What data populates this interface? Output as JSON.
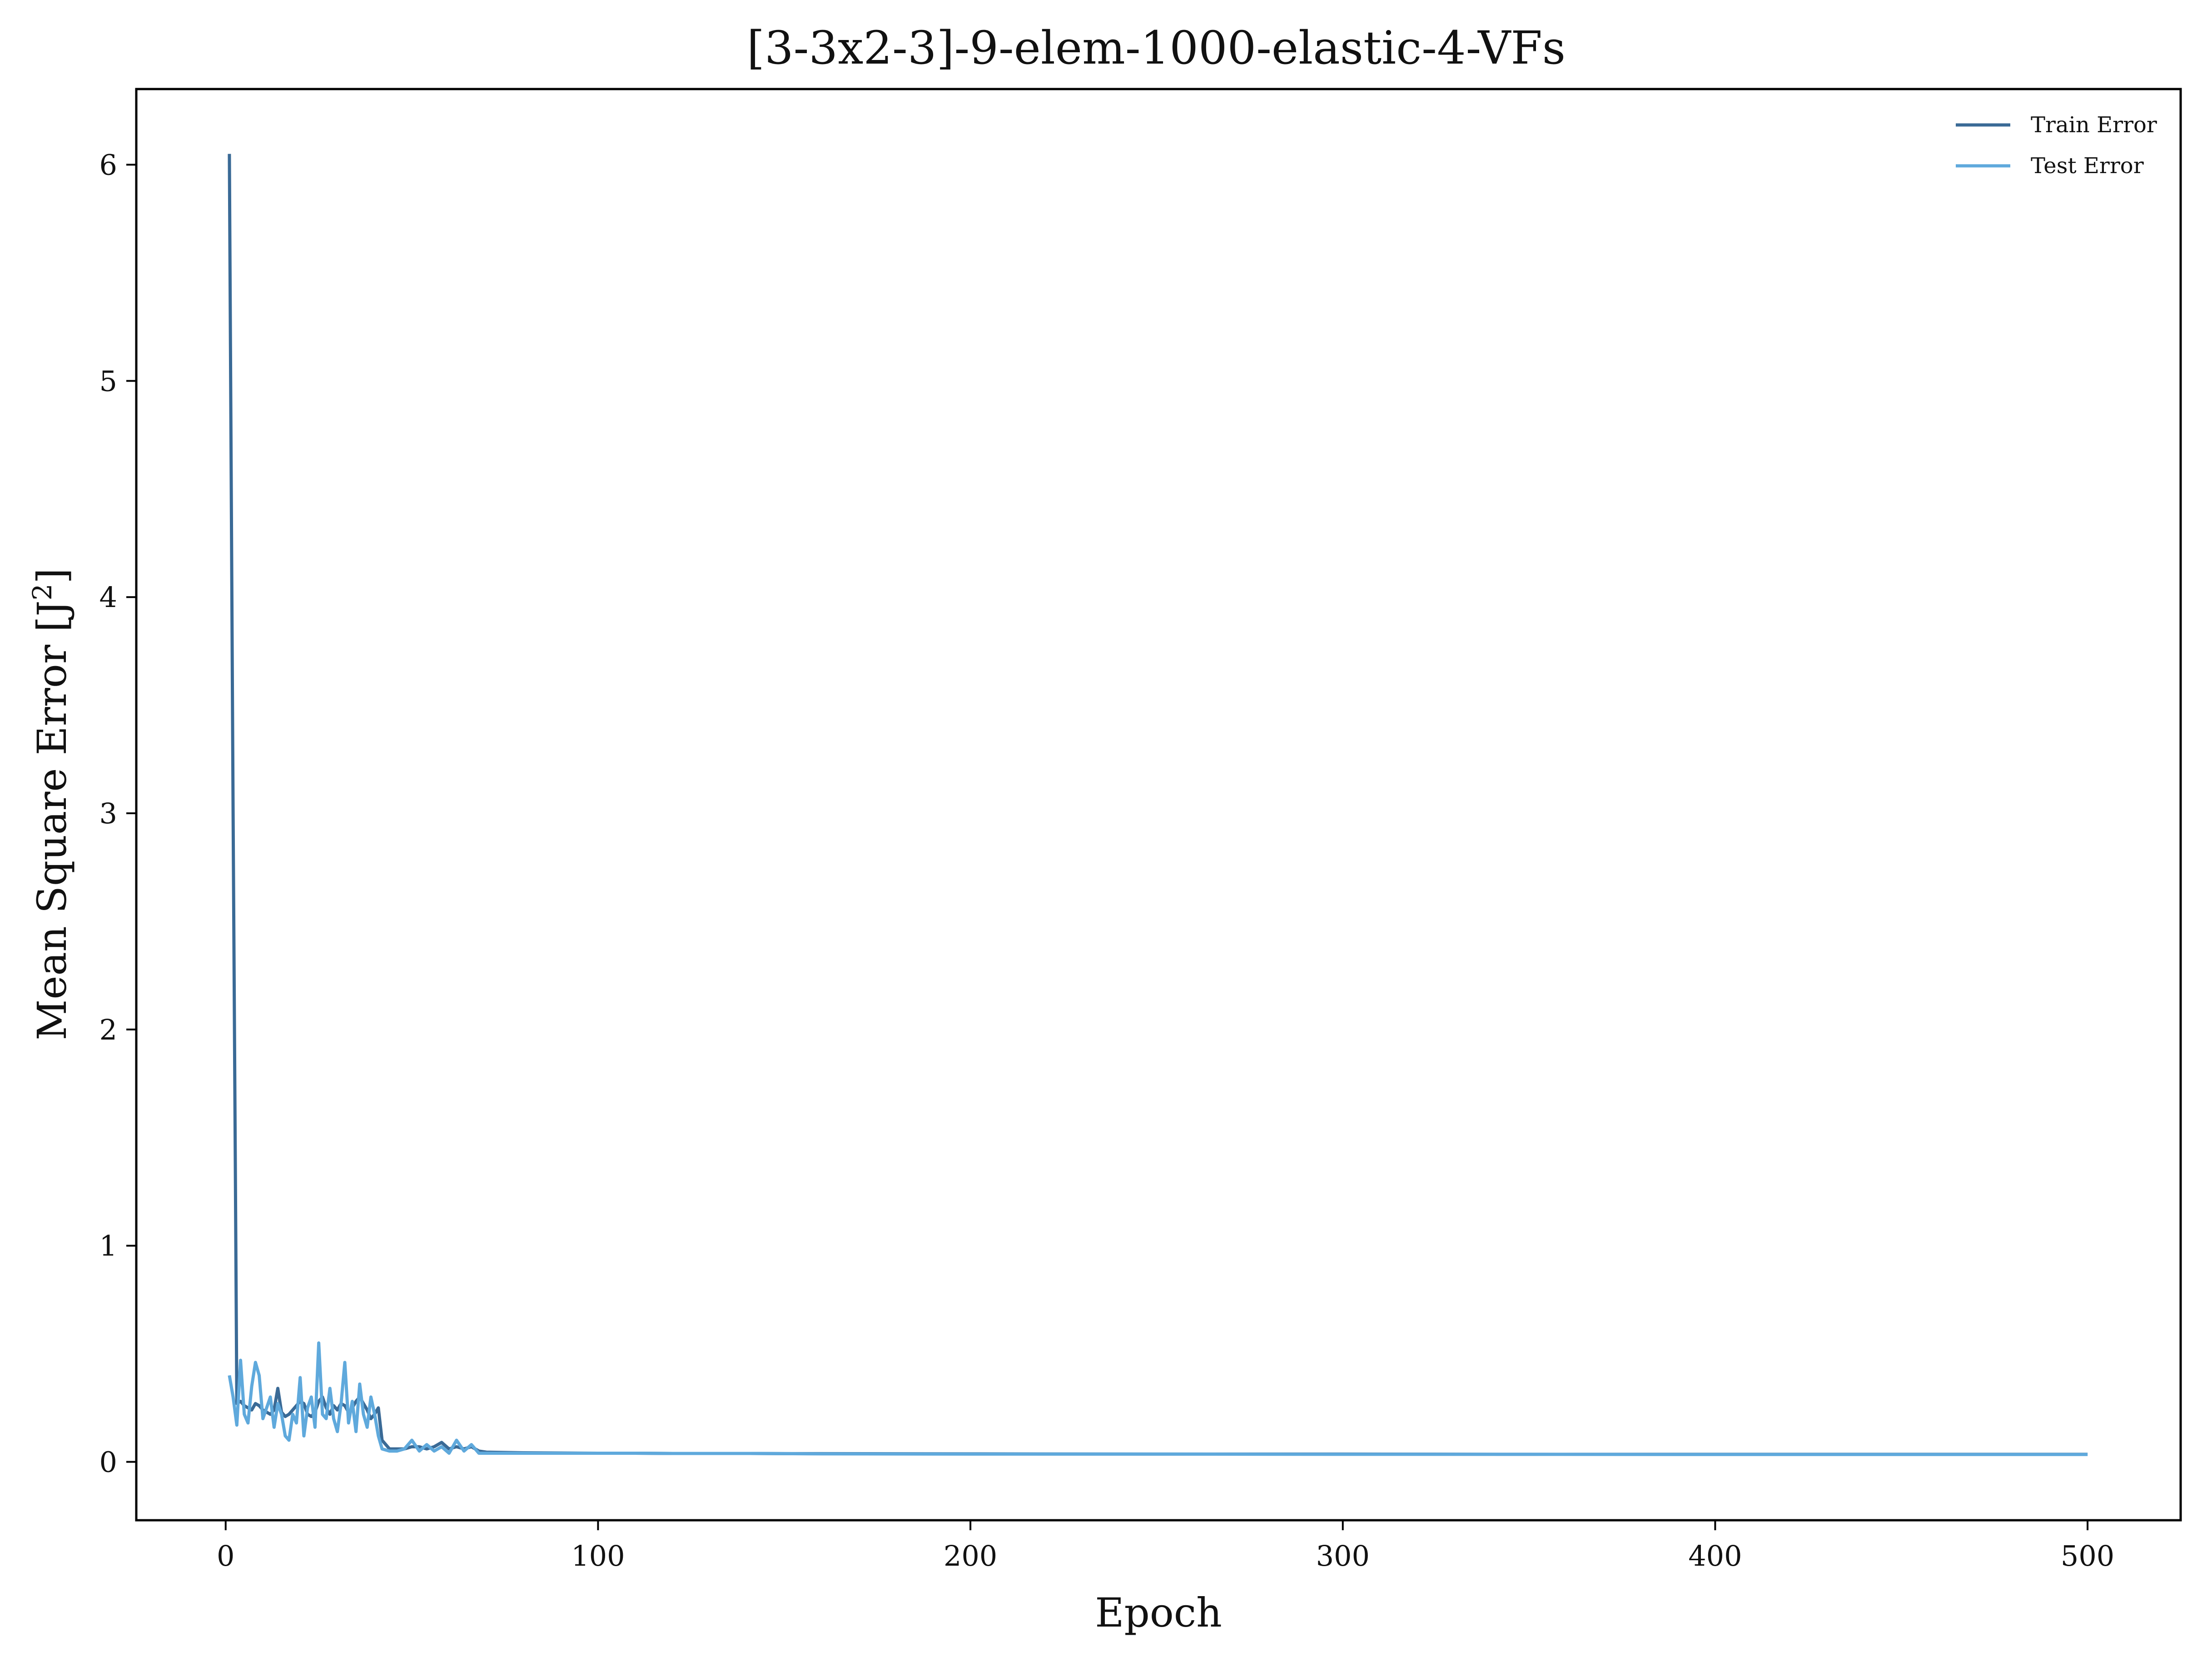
{
  "chart_data": {
    "type": "line",
    "title": "[3-3x2-3]-9-elem-1000-elastic-4-VFs",
    "xlabel": "Epoch",
    "ylabel": "Mean Square Error [J",
    "ylabel_superscript": "2",
    "ylabel_suffix": "]",
    "xlim": [
      -24,
      525
    ],
    "ylim": [
      -0.27,
      6.35
    ],
    "xticks": [
      0,
      100,
      200,
      300,
      400,
      500
    ],
    "yticks": [
      0,
      1,
      2,
      3,
      4,
      5,
      6
    ],
    "grid": false,
    "legend_position": "top-right",
    "series": [
      {
        "name": "Train Error",
        "color": "#3a6a96",
        "x": [
          1,
          2,
          3,
          4,
          5,
          6,
          7,
          8,
          9,
          10,
          11,
          12,
          13,
          14,
          15,
          16,
          17,
          18,
          19,
          20,
          21,
          22,
          23,
          24,
          25,
          26,
          27,
          28,
          29,
          30,
          31,
          32,
          33,
          34,
          35,
          36,
          37,
          38,
          39,
          40,
          41,
          42,
          44,
          46,
          48,
          50,
          52,
          54,
          56,
          58,
          60,
          62,
          64,
          66,
          68,
          70,
          80,
          90,
          100,
          110,
          120,
          130,
          140,
          150,
          160,
          200,
          250,
          300,
          350,
          400,
          450,
          500
        ],
        "y": [
          6.05,
          3.0,
          0.27,
          0.28,
          0.26,
          0.25,
          0.24,
          0.27,
          0.26,
          0.24,
          0.23,
          0.22,
          0.24,
          0.34,
          0.23,
          0.21,
          0.22,
          0.24,
          0.26,
          0.28,
          0.27,
          0.22,
          0.21,
          0.23,
          0.28,
          0.3,
          0.25,
          0.22,
          0.26,
          0.24,
          0.27,
          0.26,
          0.23,
          0.25,
          0.28,
          0.3,
          0.27,
          0.24,
          0.2,
          0.22,
          0.25,
          0.1,
          0.06,
          0.06,
          0.06,
          0.07,
          0.07,
          0.06,
          0.07,
          0.09,
          0.06,
          0.07,
          0.06,
          0.07,
          0.05,
          0.045,
          0.042,
          0.041,
          0.04,
          0.04,
          0.039,
          0.039,
          0.039,
          0.038,
          0.038,
          0.037,
          0.036,
          0.036,
          0.035,
          0.035,
          0.035,
          0.035
        ]
      },
      {
        "name": "Test Error",
        "color": "#5fa9dc",
        "x": [
          1,
          2,
          3,
          4,
          5,
          6,
          7,
          8,
          9,
          10,
          11,
          12,
          13,
          14,
          15,
          16,
          17,
          18,
          19,
          20,
          21,
          22,
          23,
          24,
          25,
          26,
          27,
          28,
          29,
          30,
          31,
          32,
          33,
          34,
          35,
          36,
          37,
          38,
          39,
          40,
          41,
          42,
          44,
          46,
          48,
          50,
          52,
          54,
          56,
          58,
          60,
          62,
          64,
          66,
          68,
          70,
          80,
          90,
          100,
          110,
          120,
          130,
          140,
          150,
          160,
          200,
          250,
          300,
          350,
          400,
          450,
          500
        ],
        "y": [
          0.4,
          0.3,
          0.17,
          0.47,
          0.22,
          0.18,
          0.35,
          0.46,
          0.4,
          0.2,
          0.25,
          0.3,
          0.16,
          0.27,
          0.22,
          0.12,
          0.1,
          0.22,
          0.18,
          0.39,
          0.12,
          0.25,
          0.3,
          0.16,
          0.55,
          0.22,
          0.2,
          0.34,
          0.2,
          0.14,
          0.27,
          0.46,
          0.18,
          0.28,
          0.14,
          0.36,
          0.22,
          0.16,
          0.3,
          0.22,
          0.12,
          0.06,
          0.05,
          0.05,
          0.06,
          0.1,
          0.05,
          0.08,
          0.05,
          0.07,
          0.04,
          0.1,
          0.05,
          0.08,
          0.04,
          0.04,
          0.04,
          0.04,
          0.04,
          0.04,
          0.039,
          0.039,
          0.039,
          0.038,
          0.037,
          0.036,
          0.036,
          0.035,
          0.035,
          0.034,
          0.034,
          0.034
        ]
      }
    ]
  }
}
